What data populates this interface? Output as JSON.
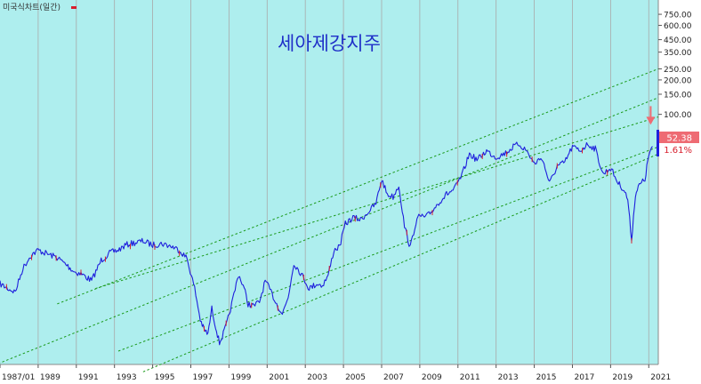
{
  "window_title": "미국식차트(일간)",
  "chart_data": {
    "type": "line",
    "title": "세아제강지주",
    "xlabel": "",
    "ylabel": "",
    "scale": "log",
    "grid": {
      "vertical": true,
      "horizontal": false
    },
    "x_range": [
      1987.0,
      2021.5
    ],
    "y_range": [
      0.65,
      1000
    ],
    "x_ticks": [
      "1987/01",
      "1989",
      "1991",
      "1993",
      "1995",
      "1997",
      "1999",
      "2001",
      "2003",
      "2005",
      "2007",
      "2009",
      "2011",
      "2013",
      "2015",
      "2017",
      "2019",
      "2021"
    ],
    "y_ticks": [
      "750.00",
      "600.00",
      "450.00",
      "350.00",
      "250.00",
      "200.00",
      "150.00",
      "100.00"
    ],
    "last_price": "52.38",
    "last_change": "1.61%",
    "series": [
      {
        "x": [
          1987.0,
          1987.4,
          1987.8,
          1988.2,
          1988.6,
          1989.0,
          1989.5,
          1990.0,
          1990.5,
          1990.9,
          1991.3,
          1991.8,
          1992.3,
          1992.8,
          1993.2,
          1993.6,
          1994.0,
          1994.5,
          1995.0,
          1995.5,
          1996.0,
          1996.4,
          1996.8,
          1997.2,
          1997.5,
          1997.7,
          1997.9,
          1998.1,
          1998.3,
          1998.5,
          1998.7,
          1998.9,
          1999.2,
          1999.5,
          1999.8,
          2000.0,
          2000.3,
          2000.6,
          2000.9,
          2001.2,
          2001.5,
          2001.8,
          2002.1,
          2002.4,
          2002.8,
          2003.2,
          2003.6,
          2003.9,
          2004.2,
          2004.5,
          2004.8,
          2005.1,
          2005.5,
          2005.9,
          2006.3,
          2006.7,
          2007.0,
          2007.3,
          2007.6,
          2007.9,
          2008.2,
          2008.5,
          2008.8,
          2009.0,
          2009.3,
          2009.6,
          2010.0,
          2010.4,
          2010.8,
          2011.2,
          2011.6,
          2012.0,
          2012.5,
          2013.0,
          2013.5,
          2013.9,
          2014.2,
          2014.6,
          2015.0,
          2015.4,
          2015.8,
          2016.2,
          2016.6,
          2017.0,
          2017.4,
          2017.8,
          2018.2,
          2018.6,
          2019.0,
          2019.4,
          2019.7,
          2019.9,
          2020.1,
          2020.3,
          2020.5,
          2020.8,
          2021.0,
          2021.2
        ],
        "y": [
          3.3,
          3.0,
          2.8,
          4.5,
          5.8,
          6.5,
          6.0,
          5.6,
          4.8,
          4.2,
          4.0,
          3.5,
          5.3,
          6.2,
          6.5,
          7.2,
          7.5,
          7.8,
          7.2,
          7.4,
          7.0,
          6.5,
          5.5,
          3.0,
          1.6,
          1.3,
          1.2,
          2.0,
          1.4,
          1.0,
          1.2,
          1.5,
          2.4,
          4.0,
          3.0,
          2.2,
          2.1,
          2.3,
          3.5,
          2.8,
          2.2,
          1.8,
          2.5,
          5.0,
          4.0,
          3.0,
          3.3,
          3.2,
          3.9,
          6.5,
          7.0,
          11.0,
          12.5,
          12.0,
          14.0,
          16.5,
          27.0,
          20.0,
          19.0,
          24.0,
          10.5,
          6.8,
          11.5,
          13.0,
          12.5,
          14.0,
          17.0,
          20.0,
          22.0,
          29.0,
          45.0,
          40.0,
          48.0,
          42.0,
          46.0,
          52.0,
          55.0,
          48.0,
          37.0,
          42.0,
          25.0,
          35.0,
          38.0,
          52.0,
          48.0,
          55.0,
          50.0,
          30.0,
          34.0,
          25.0,
          22.0,
          18.0,
          8.0,
          20.0,
          24.0,
          27.0,
          44.0,
          52.38
        ]
      }
    ],
    "trend_lines": [
      {
        "x": [
          1990.0,
          2021.5
        ],
        "y": [
          2.2,
          250.0
        ]
      },
      {
        "x": [
          1992.0,
          2021.5
        ],
        "y": [
          3.0,
          95.0
        ]
      },
      {
        "x": [
          1986.9,
          2021.5
        ],
        "y": [
          0.66,
          140.0
        ]
      },
      {
        "x": [
          1993.2,
          2021.5
        ],
        "y": [
          0.85,
          52.0
        ]
      },
      {
        "x": [
          1994.5,
          2021.5
        ],
        "y": [
          0.56,
          45.0
        ]
      }
    ],
    "annotation": {
      "type": "arrow-down",
      "x": 2021.1,
      "y": 118,
      "color": "#ee6b73"
    }
  },
  "colors": {
    "plot_bg": "#aeeeee",
    "line": "#1f1fdc",
    "line_accent": "#d81e2c",
    "trend": "#1a9a1a",
    "grid": "#a9a9a9",
    "title": "#1f2fc8",
    "price_box": "#ee6b73",
    "change_text": "#d81e2c"
  }
}
